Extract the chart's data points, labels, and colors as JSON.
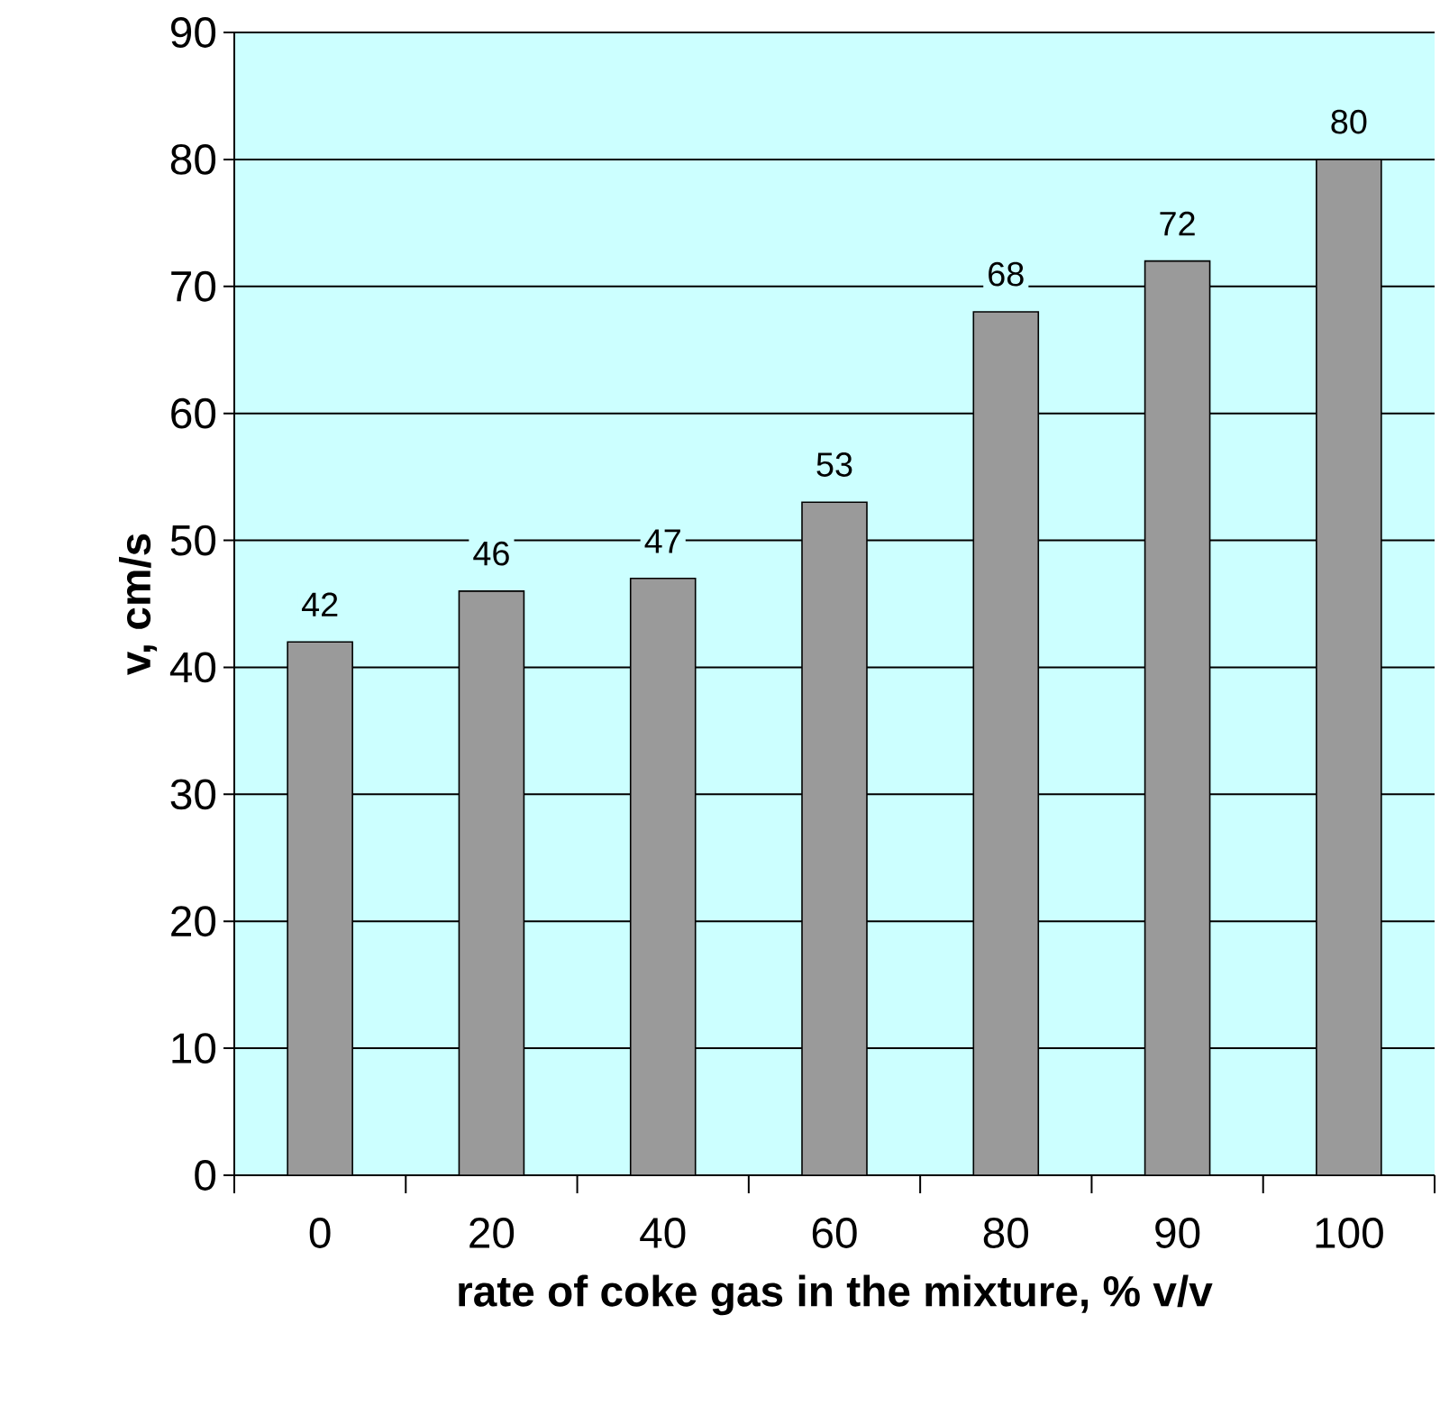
{
  "chart_data": {
    "type": "bar",
    "xlabel": "rate of coke gas in the mixture, % v/v",
    "ylabel": "v, cm/s",
    "categories": [
      "0",
      "20",
      "40",
      "60",
      "80",
      "90",
      "100"
    ],
    "values": [
      42,
      46,
      47,
      53,
      68,
      72,
      80
    ],
    "color": "#9a9a9a",
    "ylim": [
      0,
      90
    ],
    "yticks": [
      0,
      10,
      20,
      30,
      40,
      50,
      60,
      70,
      80,
      90
    ],
    "grid": "y",
    "data_labels": true
  }
}
